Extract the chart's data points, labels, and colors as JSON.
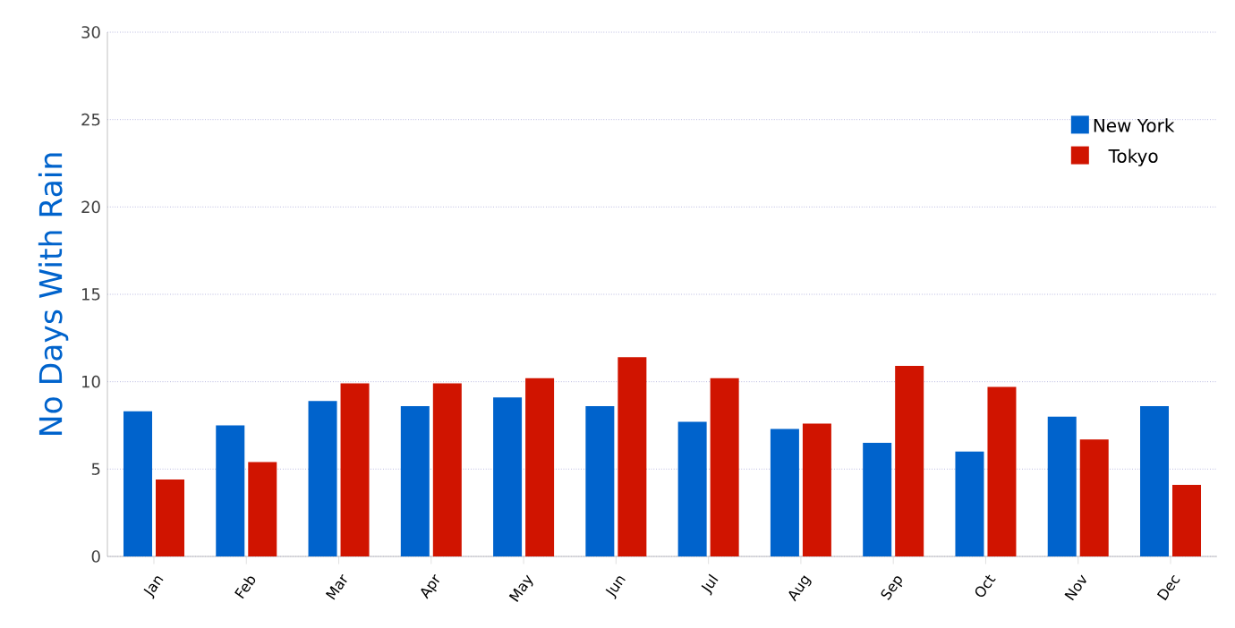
{
  "chart_data": {
    "type": "bar",
    "ylabel": "No Days With Rain",
    "categories": [
      "Jan",
      "Feb",
      "Mar",
      "Apr",
      "May",
      "Jun",
      "Jul",
      "Aug",
      "Sep",
      "Oct",
      "Nov",
      "Dec"
    ],
    "series": [
      {
        "name": "New York",
        "color": "#0063cc",
        "values": [
          8.3,
          7.5,
          8.9,
          8.6,
          9.1,
          8.6,
          7.7,
          7.3,
          6.5,
          6.0,
          8.0,
          8.6
        ]
      },
      {
        "name": "Tokyo",
        "color": "#d01400",
        "values": [
          4.4,
          5.4,
          9.9,
          9.9,
          10.2,
          11.4,
          10.2,
          7.6,
          10.9,
          9.7,
          6.7,
          4.1
        ]
      }
    ],
    "ylim": [
      0,
      30
    ],
    "yticks": [
      0,
      5,
      10,
      15,
      20,
      25,
      30
    ],
    "grid": "y",
    "legend": "top right"
  }
}
